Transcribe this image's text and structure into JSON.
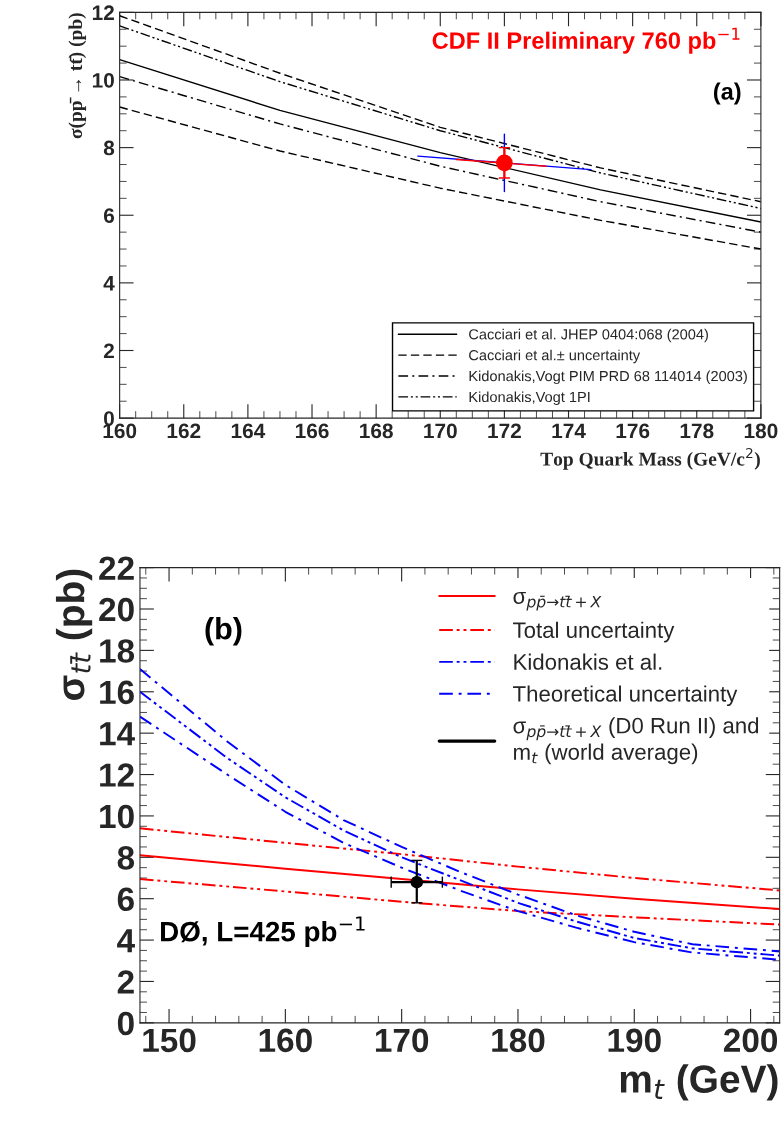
{
  "chart_data": [
    {
      "type": "line",
      "xlabel": "Top Quark Mass (GeV/c$^{2}$)",
      "ylabel": "σ(pp̄ → tt̄) (pb)",
      "xlim": [
        160,
        180
      ],
      "ylim": [
        0,
        12
      ],
      "xticks": [
        160,
        162,
        164,
        166,
        168,
        170,
        172,
        174,
        176,
        178,
        180
      ],
      "yticks": [
        0,
        2,
        4,
        6,
        8,
        10,
        12
      ],
      "legend": "bottom right",
      "annotations": [
        "CDF II Preliminary 760 pb$^{−1}$",
        "(a)"
      ],
      "series": [
        {
          "name": "Cacciari et al. JHEP 0404:068 (2004)",
          "color": "#000000",
          "line_style": "solid",
          "x": [
            160,
            165,
            170,
            175,
            180
          ],
          "values": [
            10.6,
            9.1,
            7.85,
            6.75,
            5.8
          ]
        },
        {
          "name": "Cacciari et al.± uncertainty",
          "color": "#000000",
          "line_style": "dashed",
          "x": [
            160,
            165,
            170,
            175,
            180
          ],
          "values": [
            11.9,
            10.2,
            8.6,
            7.4,
            6.4
          ]
        },
        {
          "color": "#000000",
          "line_style": "dashed",
          "x": [
            160,
            165,
            170,
            175,
            180
          ],
          "values": [
            9.2,
            7.9,
            6.8,
            5.85,
            5.0
          ]
        },
        {
          "name": "Kidonakis,Vogt PIM PRD 68 114014 (2003)",
          "color": "#000000",
          "line_style": "dashdot",
          "x": [
            160,
            165,
            170,
            175,
            180
          ],
          "values": [
            10.1,
            8.7,
            7.45,
            6.4,
            5.5
          ]
        },
        {
          "name": "Kidonakis,Vogt 1PI",
          "color": "#000000",
          "line_style": "dashdotdot",
          "x": [
            160,
            165,
            170,
            175,
            180
          ],
          "values": [
            11.6,
            9.95,
            8.5,
            7.25,
            6.2
          ]
        },
        {
          "color": "#0000ff",
          "line_style": "solid",
          "x": [
            169.3,
            174.7
          ],
          "values": [
            7.75,
            7.35
          ]
        },
        {
          "color": "#ff0000",
          "line_style": "solid",
          "x": [
            170.5,
            173.3
          ],
          "values": [
            7.65,
            7.45
          ]
        },
        {
          "color": "#0000ff",
          "line_style": "solid",
          "x": [
            172,
            172
          ],
          "values": [
            6.7,
            8.4
          ]
        },
        {
          "type": "scatter",
          "marker": "circle",
          "color": "#ff0000",
          "x": [
            172
          ],
          "values": [
            7.55
          ],
          "errors": [
            [
              7.1,
              8.0
            ]
          ]
        }
      ]
    },
    {
      "type": "line",
      "xlabel": "m$_{t}$ (GeV)",
      "ylabel": "σ$_{tt̄}$ (pb)",
      "xlim": [
        147.5,
        202.5
      ],
      "ylim": [
        0,
        22
      ],
      "xticks": [
        150,
        160,
        170,
        180,
        190,
        200
      ],
      "yticks": [
        0,
        2,
        4,
        6,
        8,
        10,
        12,
        14,
        16,
        18,
        20,
        22
      ],
      "legend": "top right",
      "annotations": [
        "(b)",
        "DØ, L=425 pb$^{−1}$"
      ],
      "series": [
        {
          "name": "σ$_{pp̄→tt̄+X}$",
          "color": "#ff0000",
          "line_style": "solid",
          "x": [
            147.5,
            160,
            170,
            180,
            190,
            202.5
          ],
          "values": [
            8.1,
            7.45,
            6.95,
            6.45,
            6.0,
            5.5
          ]
        },
        {
          "name": "Total uncertainty",
          "color": "#ff0000",
          "line_style": "dashdotdot",
          "x": [
            147.5,
            160,
            170,
            180,
            190,
            202.5
          ],
          "values": [
            9.4,
            8.7,
            8.15,
            7.55,
            7.0,
            6.4
          ]
        },
        {
          "color": "#ff0000",
          "line_style": "dashdotdot",
          "x": [
            147.5,
            160,
            170,
            180,
            190,
            202.5
          ],
          "values": [
            6.95,
            6.35,
            5.85,
            5.4,
            5.1,
            4.75
          ]
        },
        {
          "name": "Kidonakis et al.",
          "color": "#0000ff",
          "line_style": "dashdotdot",
          "x": [
            147.5,
            155,
            160,
            165,
            170,
            175,
            180,
            185,
            190,
            195,
            202.5
          ],
          "values": [
            16.0,
            12.8,
            10.9,
            9.3,
            8.0,
            6.9,
            5.8,
            4.9,
            4.1,
            3.6,
            3.25
          ]
        },
        {
          "name": "Theoretical uncertainty",
          "color": "#0000ff",
          "line_style": "dashdot",
          "x": [
            147.5,
            155,
            160,
            165,
            170,
            175,
            180,
            185,
            190,
            195,
            202.5
          ],
          "values": [
            17.1,
            13.6,
            11.5,
            9.8,
            8.5,
            7.3,
            6.2,
            5.2,
            4.4,
            3.8,
            3.45
          ]
        },
        {
          "color": "#0000ff",
          "line_style": "dashdot",
          "x": [
            147.5,
            155,
            160,
            165,
            170,
            175,
            180,
            185,
            190,
            195,
            202.5
          ],
          "values": [
            14.8,
            12.0,
            10.2,
            8.7,
            7.5,
            6.4,
            5.4,
            4.6,
            3.9,
            3.4,
            3.05
          ]
        },
        {
          "type": "scatter",
          "name": "σ$_{pp̄→tt̄+X}$ (D0 Run II) and\nm$_{t}$ (world average)",
          "marker": "circle",
          "color": "#000000",
          "x": [
            171.3
          ],
          "values": [
            6.8
          ],
          "errors": [
            [
              5.8,
              7.85
            ]
          ],
          "xerrors": [
            [
              169.1,
              173.5
            ]
          ]
        }
      ]
    }
  ]
}
